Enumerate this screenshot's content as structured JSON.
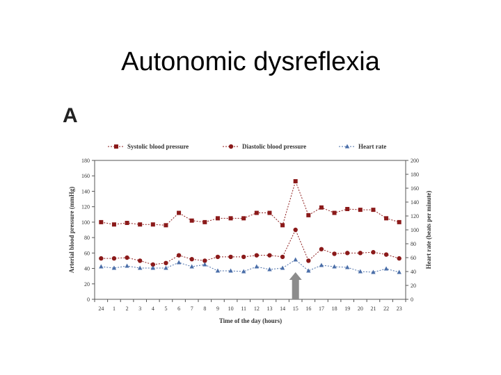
{
  "slide": {
    "title": "Autonomic dysreflexia",
    "panel_label": "A"
  },
  "chart_data": {
    "type": "line",
    "xlabel": "Time of the day (hours)",
    "ylabel": "Arterial blood pressure (mmHg)",
    "y2label": "Heart rate (beats per minute)",
    "categories": [
      "24",
      "1",
      "2",
      "3",
      "4",
      "5",
      "6",
      "7",
      "8",
      "9",
      "10",
      "11",
      "12",
      "13",
      "14",
      "15",
      "16",
      "17",
      "18",
      "19",
      "20",
      "21",
      "22",
      "23"
    ],
    "ylim": [
      0,
      180
    ],
    "yticks": [
      0,
      20,
      40,
      60,
      80,
      100,
      120,
      140,
      160,
      180
    ],
    "y2lim": [
      0,
      200
    ],
    "y2ticks": [
      0,
      20,
      40,
      60,
      80,
      100,
      120,
      140,
      160,
      180,
      200
    ],
    "grid": false,
    "legend_position": "top",
    "series": [
      {
        "name": "Systolic blood pressure",
        "axis": "left",
        "marker": "square",
        "color": "#8b1a1a",
        "values": [
          100,
          97,
          99,
          97,
          97,
          96,
          112,
          102,
          100,
          105,
          105,
          105,
          112,
          112,
          96,
          153,
          109,
          119,
          112,
          117,
          116,
          116,
          105,
          100
        ]
      },
      {
        "name": "Diastolic blood pressure",
        "axis": "left",
        "marker": "circle",
        "color": "#8b1a1a",
        "values": [
          53,
          53,
          54,
          50,
          45,
          47,
          57,
          52,
          50,
          55,
          55,
          55,
          57,
          57,
          55,
          90,
          50,
          65,
          59,
          60,
          60,
          61,
          58,
          53
        ]
      },
      {
        "name": "Heart rate",
        "axis": "right",
        "marker": "triangle",
        "color": "#4a6ea8",
        "values": [
          47,
          45,
          48,
          45,
          45,
          45,
          53,
          47,
          50,
          41,
          41,
          40,
          47,
          43,
          45,
          57,
          41,
          49,
          47,
          46,
          40,
          39,
          44,
          39
        ]
      }
    ],
    "annotation": {
      "type": "arrow",
      "at_category": "15",
      "color": "#8c8c8c"
    }
  }
}
